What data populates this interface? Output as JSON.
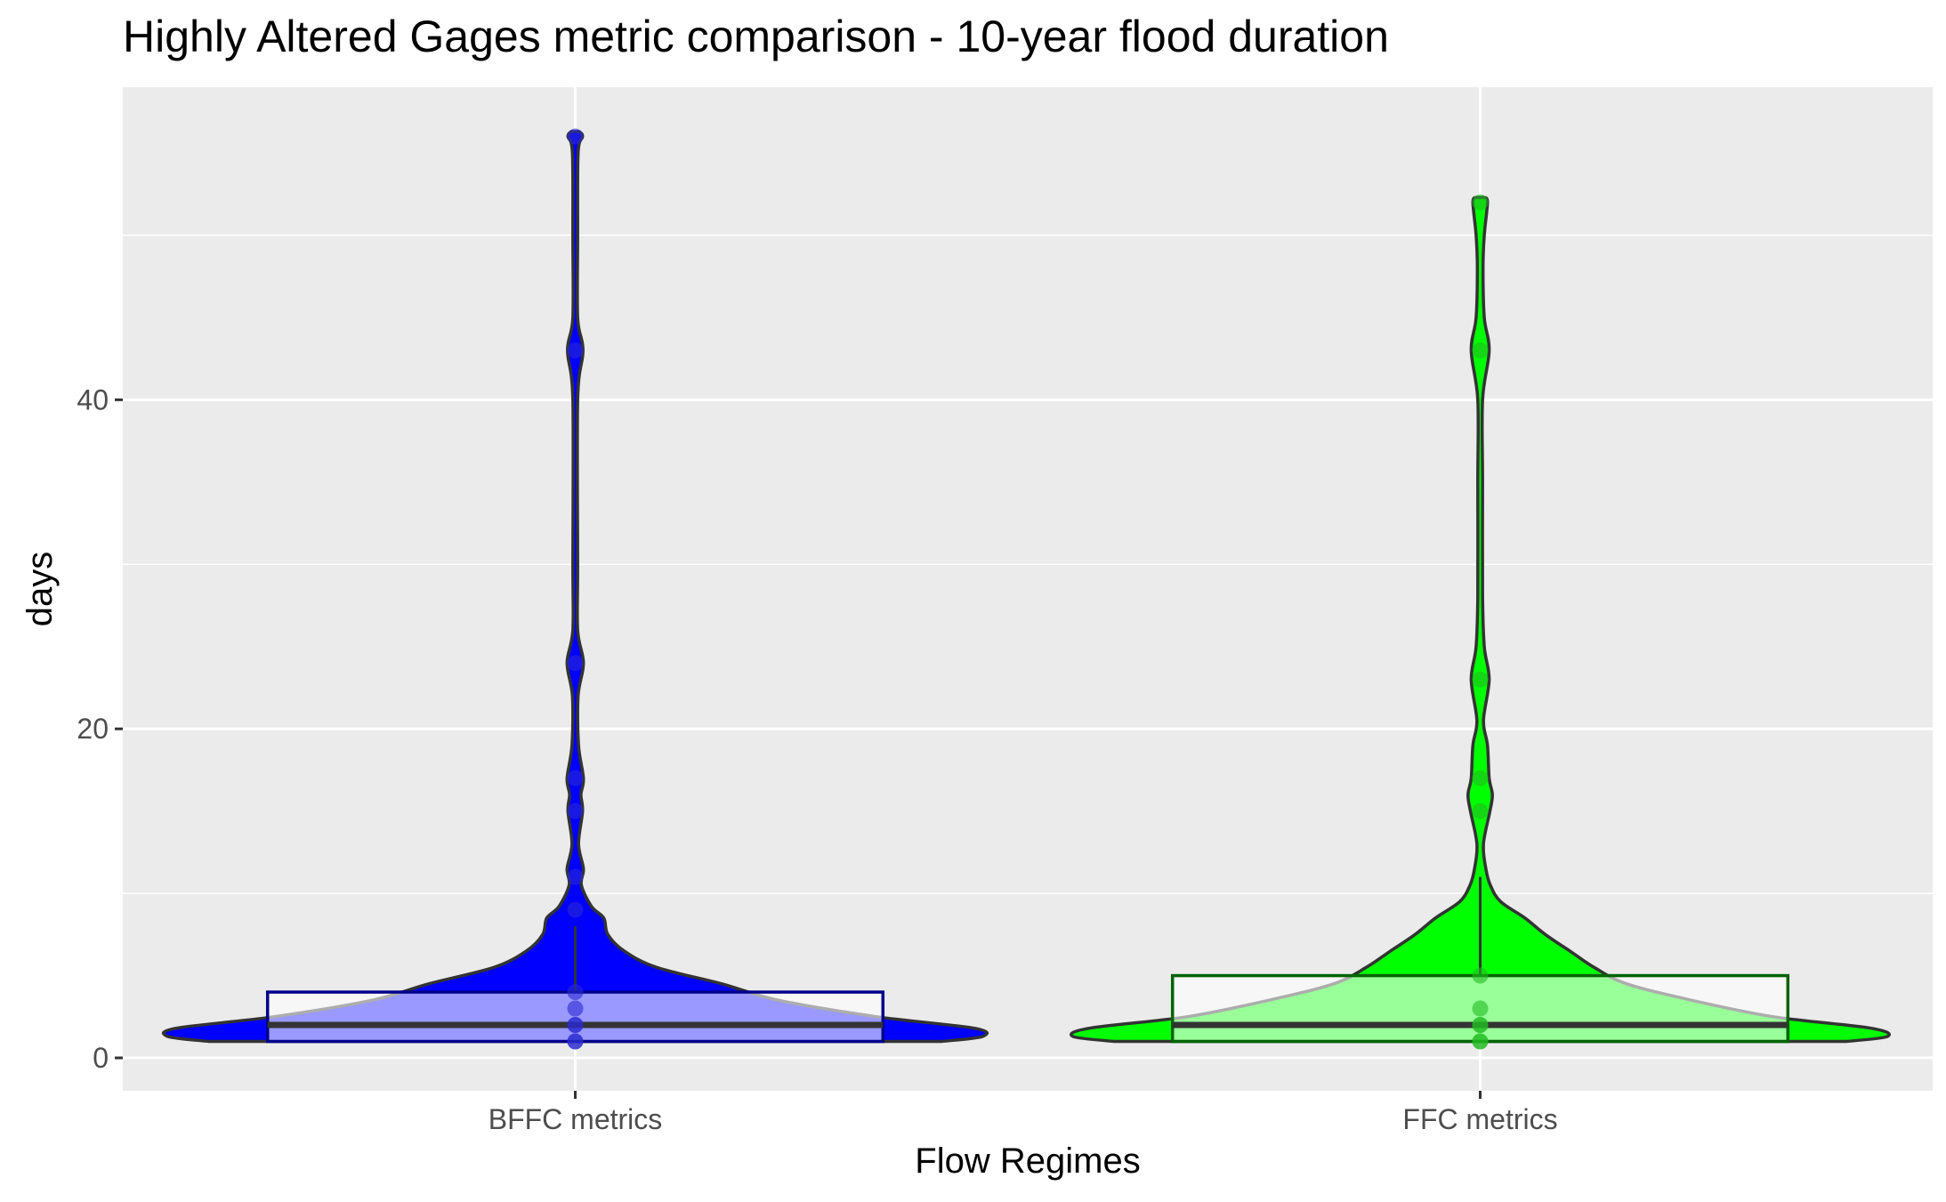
{
  "chart_data": {
    "type": "violin",
    "title": "Highly Altered Gages metric comparison - 10-year flood duration",
    "xlabel": "Flow Regimes",
    "ylabel": "days",
    "ylim": [
      -2,
      59
    ],
    "y_ticks": [
      0,
      20,
      40
    ],
    "grid": true,
    "categories": [
      "BFFC metrics",
      "FFC metrics"
    ],
    "series": [
      {
        "category": "BFFC metrics",
        "fill": "#0000ff",
        "box_color": "#00008b",
        "box": {
          "q1": 1,
          "median": 2,
          "q3": 4,
          "whisker_low": 1,
          "whisker_high": 8
        },
        "points": [
          1,
          1,
          2,
          2,
          3,
          4,
          9,
          11,
          15,
          17,
          24,
          43,
          56
        ],
        "density": [
          [
            1,
            0.9
          ],
          [
            1.3,
            1.0
          ],
          [
            1.8,
            0.98
          ],
          [
            2.5,
            0.74
          ],
          [
            3.5,
            0.5
          ],
          [
            4.5,
            0.36
          ],
          [
            5.5,
            0.2
          ],
          [
            6.5,
            0.12
          ],
          [
            7.5,
            0.08
          ],
          [
            8.5,
            0.07
          ],
          [
            9.2,
            0.04
          ],
          [
            10.5,
            0.015
          ],
          [
            11.5,
            0.02
          ],
          [
            13,
            0.008
          ],
          [
            15,
            0.018
          ],
          [
            16,
            0.014
          ],
          [
            17,
            0.02
          ],
          [
            19,
            0.008
          ],
          [
            22,
            0.007
          ],
          [
            24,
            0.02
          ],
          [
            26,
            0.006
          ],
          [
            30,
            0.006
          ],
          [
            40,
            0.006
          ],
          [
            43,
            0.019
          ],
          [
            45,
            0.006
          ],
          [
            50,
            0.006
          ],
          [
            55,
            0.007
          ],
          [
            56,
            0.018
          ],
          [
            56.3,
            0.01
          ]
        ]
      },
      {
        "category": "FFC metrics",
        "fill": "#00ff00",
        "box_color": "#006400",
        "box": {
          "q1": 1,
          "median": 2,
          "q3": 5,
          "whisker_low": 1,
          "whisker_high": 11
        },
        "points": [
          1,
          1,
          2,
          2,
          3,
          5,
          15,
          17,
          23,
          43,
          52
        ],
        "density": [
          [
            1,
            0.9
          ],
          [
            1.3,
            1.0
          ],
          [
            1.8,
            0.96
          ],
          [
            2.5,
            0.72
          ],
          [
            3.5,
            0.52
          ],
          [
            4.5,
            0.36
          ],
          [
            5.5,
            0.28
          ],
          [
            6.5,
            0.22
          ],
          [
            7.5,
            0.16
          ],
          [
            8.5,
            0.11
          ],
          [
            9.5,
            0.05
          ],
          [
            10.5,
            0.025
          ],
          [
            11.5,
            0.014
          ],
          [
            13,
            0.008
          ],
          [
            15,
            0.024
          ],
          [
            16,
            0.03
          ],
          [
            17,
            0.022
          ],
          [
            19,
            0.018
          ],
          [
            20.5,
            0.008
          ],
          [
            23,
            0.022
          ],
          [
            25,
            0.01
          ],
          [
            28,
            0.006
          ],
          [
            35,
            0.006
          ],
          [
            40,
            0.006
          ],
          [
            43,
            0.022
          ],
          [
            45,
            0.01
          ],
          [
            48,
            0.007
          ],
          [
            50,
            0.01
          ],
          [
            52,
            0.018
          ],
          [
            52.3,
            0.01
          ]
        ]
      }
    ]
  }
}
